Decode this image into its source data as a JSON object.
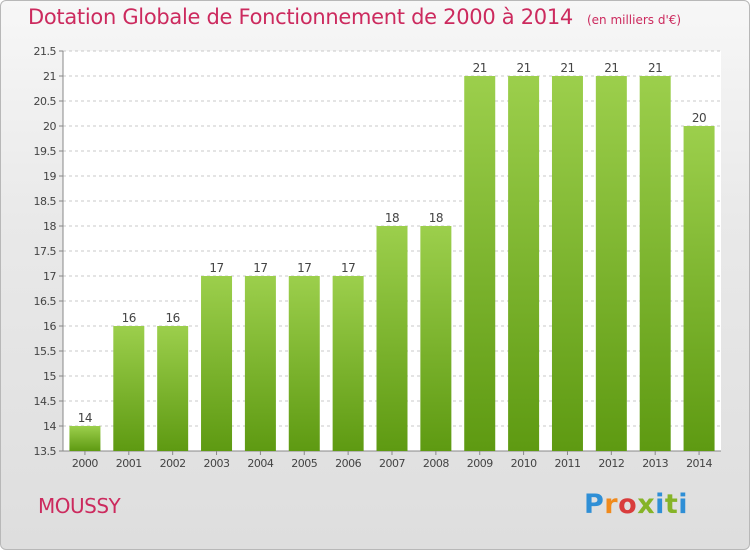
{
  "header": {
    "title": "Dotation Globale de Fonctionnement de 2000 à 2014",
    "subtitle": "(en milliers d'€)"
  },
  "footer": {
    "commune": "MOUSSY",
    "brand": "Proxiti"
  },
  "colors": {
    "title": "#cc2a5e",
    "bar_light": "#9ccf4c",
    "bar_dark": "#5e9a12"
  },
  "chart_data": {
    "type": "bar",
    "categories": [
      "2000",
      "2001",
      "2002",
      "2003",
      "2004",
      "2005",
      "2006",
      "2007",
      "2008",
      "2009",
      "2010",
      "2011",
      "2012",
      "2013",
      "2014"
    ],
    "values": [
      14,
      16,
      16,
      17,
      17,
      17,
      17,
      18,
      18,
      21,
      21,
      21,
      21,
      21,
      20
    ],
    "data_labels": [
      "14",
      "16",
      "16",
      "17",
      "17",
      "17",
      "17",
      "18",
      "18",
      "21",
      "21",
      "21",
      "21",
      "21",
      "20"
    ],
    "ylim": [
      13.5,
      21.5
    ],
    "yticks": [
      "13.5",
      "14",
      "14.5",
      "15",
      "15.5",
      "16",
      "16.5",
      "17",
      "17.5",
      "18",
      "18.5",
      "19",
      "19.5",
      "20",
      "20.5",
      "21",
      "21.5"
    ],
    "grid": "horizontal dashed",
    "xlabel": "",
    "ylabel": ""
  }
}
